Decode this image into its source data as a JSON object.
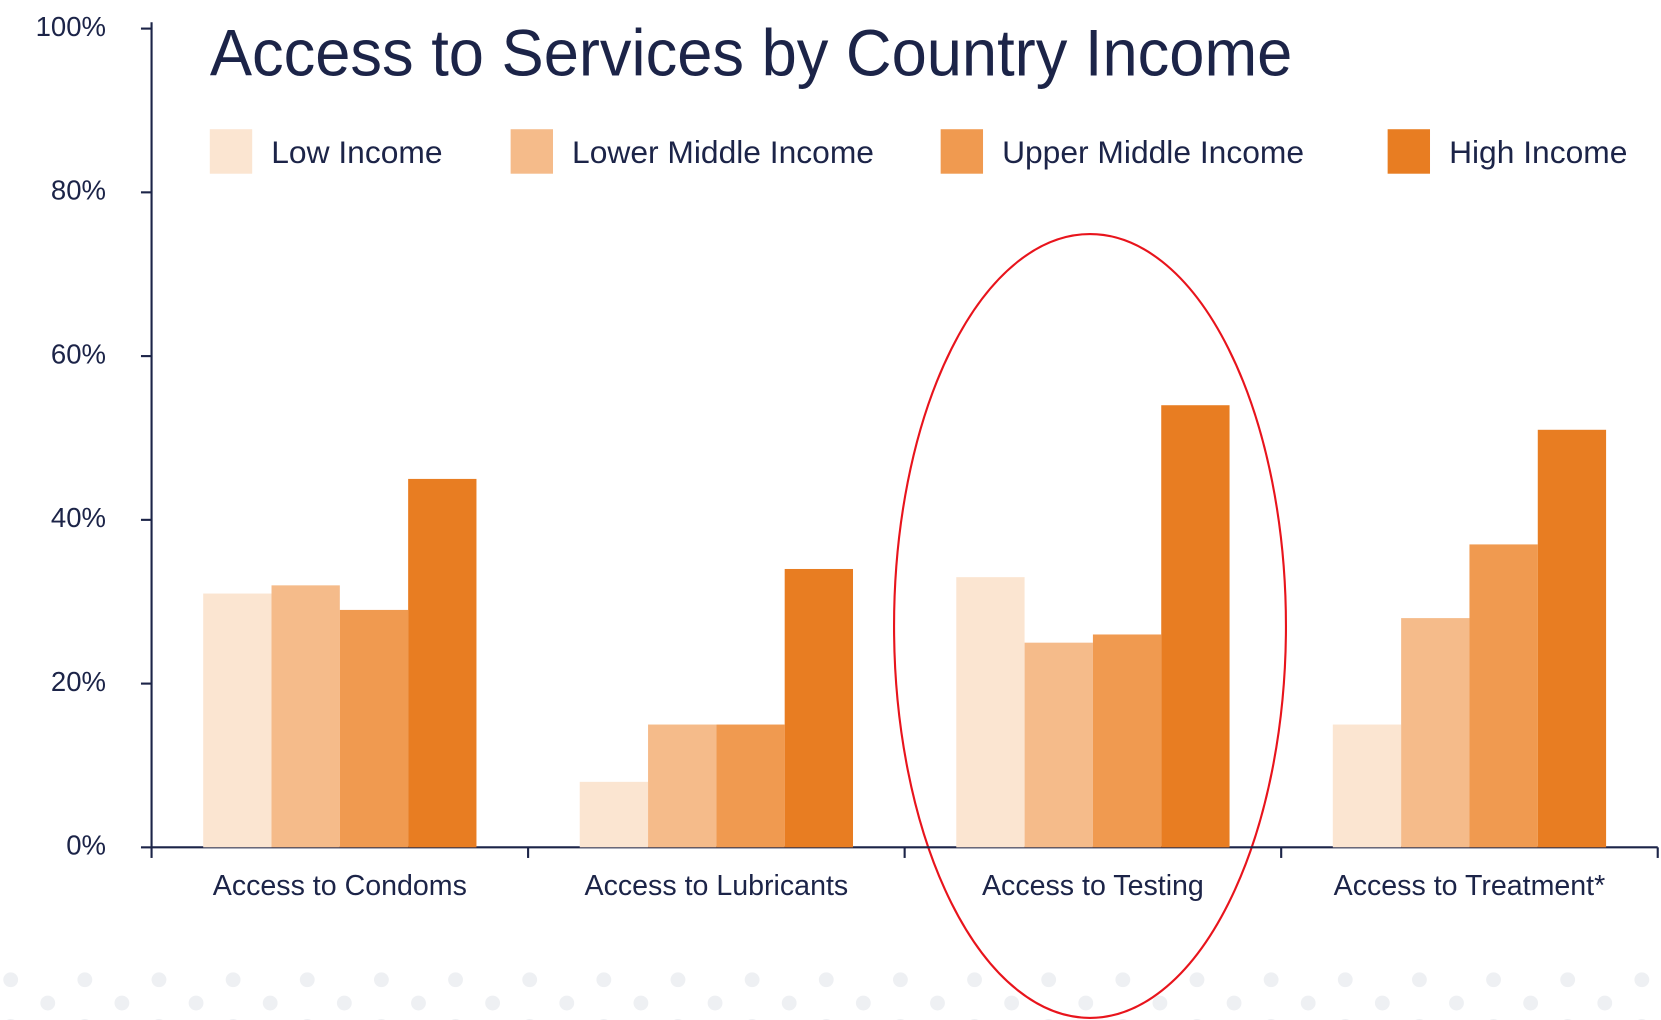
{
  "chart_data": {
    "type": "bar",
    "title": "Access to Services by Country Income",
    "categories": [
      "Access to Condoms",
      "Access to Lubricants",
      "Access to Testing",
      "Access to Treatment*"
    ],
    "series": [
      {
        "name": "Low Income",
        "color": "#fbe5d1",
        "values": [
          31,
          8,
          33,
          15
        ]
      },
      {
        "name": "Lower Middle Income",
        "color": "#f5bb8a",
        "values": [
          32,
          15,
          25,
          28
        ]
      },
      {
        "name": "Upper Middle Income",
        "color": "#f09a50",
        "values": [
          29,
          15,
          26,
          37
        ]
      },
      {
        "name": "High Income",
        "color": "#e87d22",
        "values": [
          45,
          34,
          54,
          51
        ]
      }
    ],
    "ylim": [
      0,
      100
    ],
    "yticks": [
      {
        "value": 0,
        "label": "0%"
      },
      {
        "value": 20,
        "label": "20%"
      },
      {
        "value": 40,
        "label": "40%"
      },
      {
        "value": 60,
        "label": "60%"
      },
      {
        "value": 80,
        "label": "80%"
      },
      {
        "value": 100,
        "label": "100%"
      }
    ],
    "legend": "top"
  }
}
